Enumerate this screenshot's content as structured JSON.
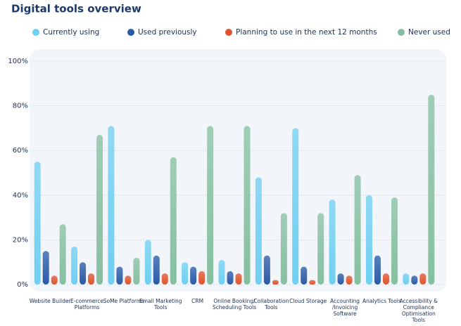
{
  "chart_data": {
    "type": "bar",
    "title": "Digital tools overview",
    "categories": [
      "Website Builder",
      "E-commerce Platforms",
      "SoMe Platforms",
      "Email Marketing Tools",
      "CRM",
      "Online Booking/ Scheduling Tools",
      "Collaboration Tools",
      "Cloud Storage",
      "Accounting /Invoicing Software",
      "Analytics Tools",
      "Accessibility & Compliance Optimisation Tools"
    ],
    "series": [
      {
        "name": "Currently using",
        "color": "#6fcff2",
        "values": [
          55,
          17,
          71,
          20,
          10,
          11,
          48,
          70,
          38,
          40,
          5
        ]
      },
      {
        "name": "Used previously",
        "color": "#2a5aa6",
        "values": [
          15,
          10,
          8,
          13,
          8,
          6,
          13,
          8,
          5,
          13,
          4
        ]
      },
      {
        "name": "Planning to use in the next 12 months",
        "color": "#e0532c",
        "values": [
          4,
          5,
          4,
          5,
          6,
          5,
          2,
          2,
          4,
          5,
          5
        ]
      },
      {
        "name": "Never used",
        "color": "#86bfa0",
        "values": [
          27,
          67,
          12,
          57,
          71,
          71,
          32,
          32,
          49,
          39,
          85
        ]
      }
    ],
    "ylim": [
      0,
      100
    ],
    "yticks": [
      {
        "value": 0,
        "label": "0%"
      },
      {
        "value": 20,
        "label": "20%"
      },
      {
        "value": 40,
        "label": "40%"
      },
      {
        "value": 60,
        "label": "60%"
      },
      {
        "value": 80,
        "label": "80%"
      },
      {
        "value": 100,
        "label": "100%"
      }
    ],
    "grid": true
  }
}
